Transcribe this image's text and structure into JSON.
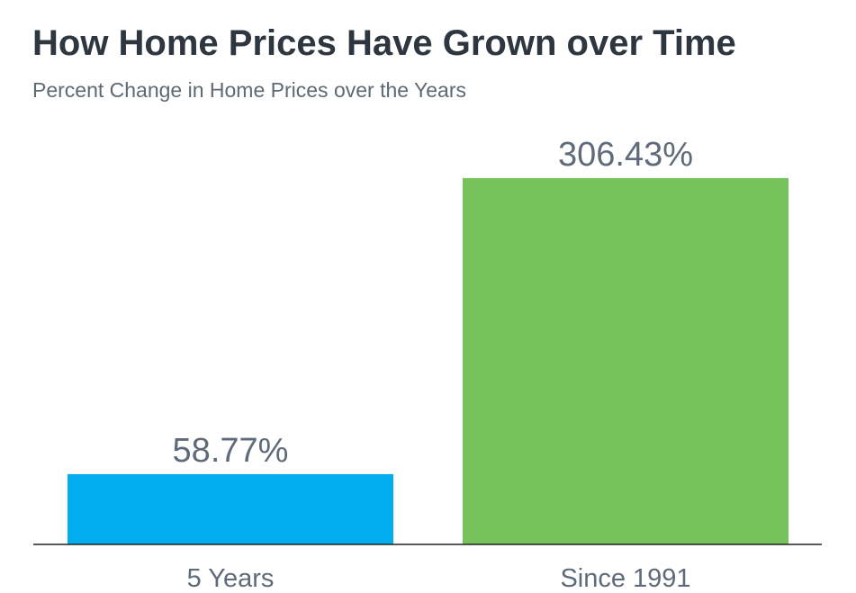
{
  "chart_data": {
    "type": "bar",
    "title": "How Home Prices Have Grown over Time",
    "subtitle": "Percent Change in Home Prices over the Years",
    "categories": [
      "5 Years",
      "Since 1991"
    ],
    "values": [
      58.77,
      306.43
    ],
    "data_labels": [
      "58.77%",
      "306.43%"
    ],
    "bar_colors": [
      "#00aeef",
      "#75c35a"
    ],
    "ylim": [
      0,
      350
    ],
    "grid": false,
    "legend": "none",
    "xlabel": "",
    "ylabel": ""
  },
  "colors": {
    "title": "#2e3740",
    "subtitle": "#5d6a73",
    "labels": "#5f6b7a",
    "axis": "#222222"
  }
}
